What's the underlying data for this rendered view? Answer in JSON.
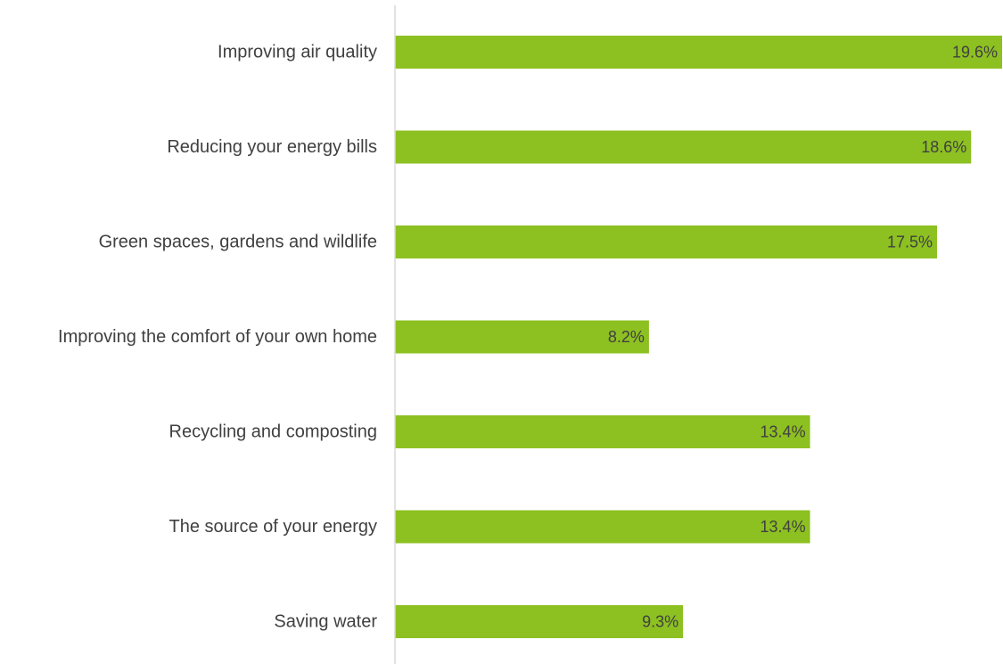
{
  "chart_data": {
    "type": "bar",
    "orientation": "horizontal",
    "categories": [
      "Improving air quality",
      "Reducing your energy bills",
      "Green spaces, gardens and wildlife",
      "Improving the comfort of your own home",
      "Recycling and composting",
      "The source of your energy",
      "Saving water"
    ],
    "values": [
      19.6,
      18.6,
      17.5,
      8.2,
      13.4,
      13.4,
      9.3
    ],
    "value_labels": [
      "19.6%",
      "18.6%",
      "17.5%",
      "8.2%",
      "13.4%",
      "13.4%",
      "9.3%"
    ],
    "unit": "%",
    "xlim": [
      0,
      19.6
    ],
    "bar_color": "#8dc021",
    "axis_color": "#d9d9d9",
    "text_color": "#404040",
    "grid": false,
    "legend": "none",
    "title": "",
    "xlabel": "",
    "ylabel": ""
  }
}
